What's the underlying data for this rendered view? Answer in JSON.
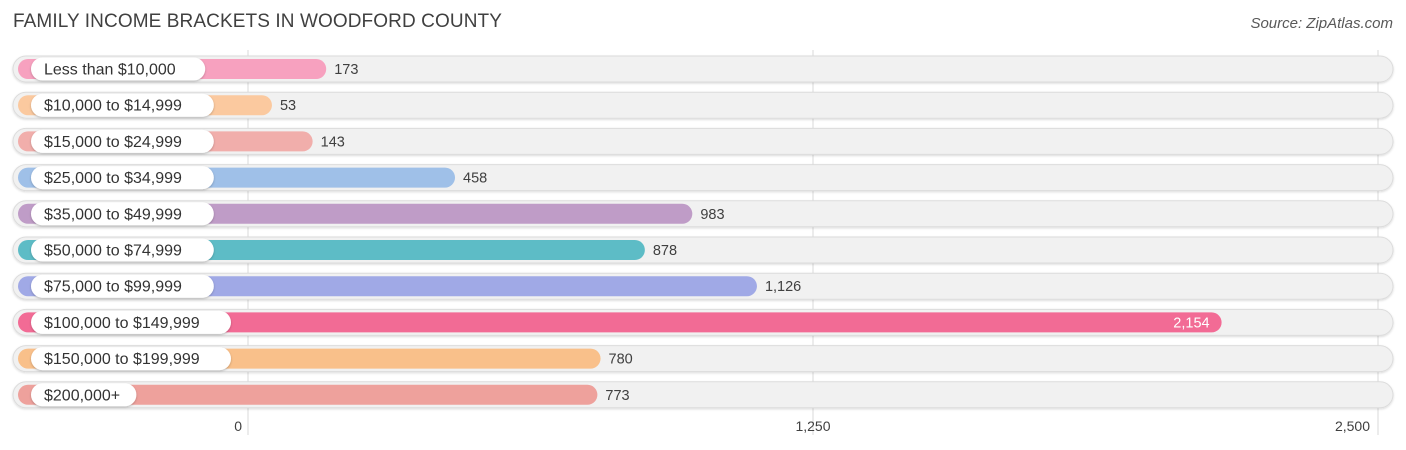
{
  "title": "FAMILY INCOME BRACKETS IN WOODFORD COUNTY",
  "source": "Source: ZipAtlas.com",
  "chart_data": {
    "type": "bar",
    "orientation": "horizontal",
    "title": "FAMILY INCOME BRACKETS IN WOODFORD COUNTY",
    "categories": [
      "Less than $10,000",
      "$10,000 to $14,999",
      "$15,000 to $24,999",
      "$25,000 to $34,999",
      "$35,000 to $49,999",
      "$50,000 to $74,999",
      "$75,000 to $99,999",
      "$100,000 to $149,999",
      "$150,000 to $199,999",
      "$200,000+"
    ],
    "values": [
      173,
      53,
      143,
      458,
      983,
      878,
      1126,
      2154,
      780,
      773
    ],
    "value_labels": [
      "173",
      "53",
      "143",
      "458",
      "983",
      "878",
      "1,126",
      "2,154",
      "780",
      "773"
    ],
    "colors": [
      "#f7a1bf",
      "#fbc99f",
      "#f1aeab",
      "#9fc0e8",
      "#bf9cc7",
      "#5dbcc6",
      "#a0a9e6",
      "#f26b95",
      "#f9c08a",
      "#eea19c"
    ],
    "xlim": [
      0,
      2500
    ],
    "xticks": [
      0,
      1250,
      2500
    ],
    "xtick_labels": [
      "0",
      "1,250",
      "2,500"
    ],
    "grid": true
  }
}
